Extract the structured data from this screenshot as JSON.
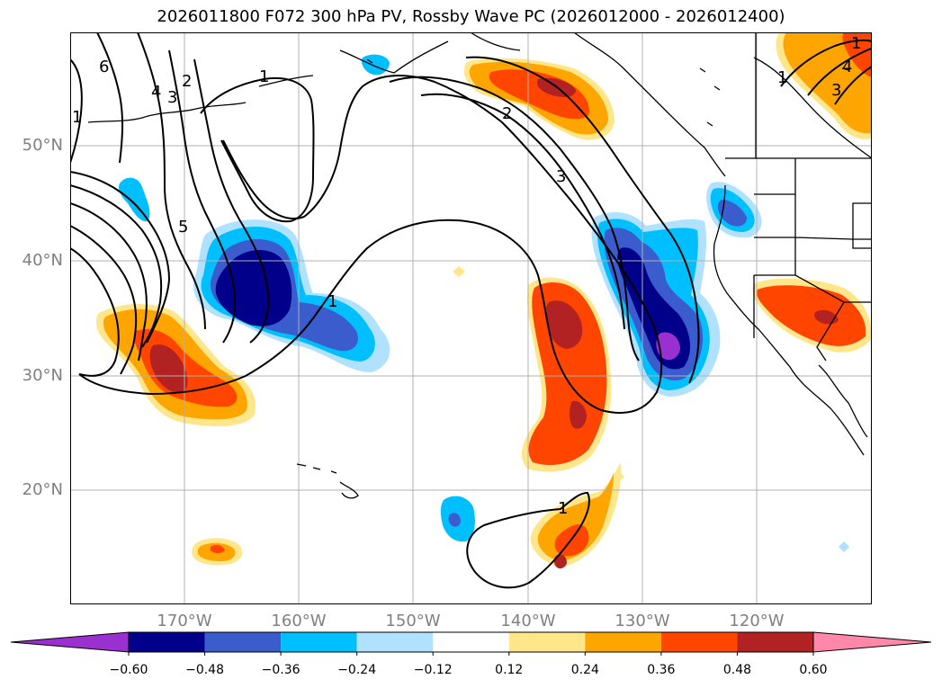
{
  "title": "2026011800 F072 300 hPa PV, Rossby Wave PC (2026012000 - 2026012400)",
  "lat_labels": [
    "50°N",
    "40°N",
    "30°N",
    "20°N"
  ],
  "lon_labels": [
    "170°W",
    "160°W",
    "150°W",
    "140°W",
    "130°W",
    "120°W"
  ],
  "contour_labels": [
    "6",
    "1",
    "4",
    "3",
    "2",
    "1",
    "5",
    "1",
    "2",
    "3",
    "1",
    "1",
    "3",
    "4",
    "1"
  ],
  "colorbar": {
    "ticks": [
      "−0.60",
      "−0.48",
      "−0.36",
      "−0.24",
      "−0.12",
      "0.12",
      "0.24",
      "0.36",
      "0.48",
      "0.60"
    ],
    "colors": [
      "#9b30d0",
      "#00008b",
      "#3a5ccc",
      "#00bfff",
      "#b0e2ff",
      "#ffffff",
      "#ffe68a",
      "#ffa500",
      "#ff4500",
      "#b22222",
      "#ff88aa"
    ]
  }
}
